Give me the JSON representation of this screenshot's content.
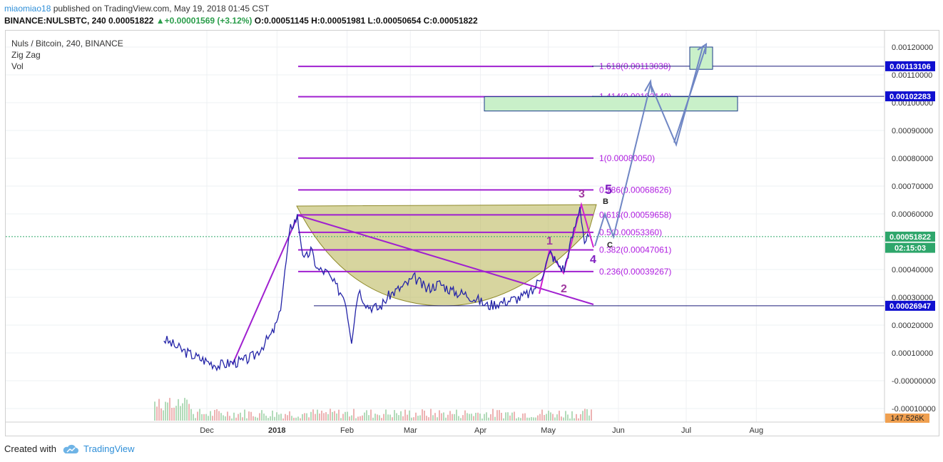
{
  "header": {
    "user": "miaomiao18",
    "published": " published on TradingView.com, May 19, 2018 01:45 CST",
    "symbol_line_prefix": "BINANCE:NULSBTC, 240  0.00051822 ",
    "change": "+0.00001569 (+3.12%)",
    "ohlc": " O:0.00051145 H:0.00051981 L:0.00050654 C:0.00051822"
  },
  "legend": {
    "title": "Nuls / Bitcoin, 240, BINANCE",
    "indicator1": "Zig Zag",
    "indicator2": "Vol"
  },
  "footer": {
    "created_with": "Created with",
    "brand": "TradingView"
  },
  "colors": {
    "price": "#2424a8",
    "fib": "#a020d0",
    "zigzag": "#a020d0",
    "projection": "#6f86c4",
    "cup": "#b6b350",
    "box_fill": "#c9f0c9",
    "label_bg": "#1010d0",
    "last_price_bg": "#2ea66b"
  },
  "chart_data": {
    "type": "line",
    "title": "Nuls / Bitcoin, 240, BINANCE",
    "y_axis_ticks": [
      "0.00120000",
      "0.00110000",
      "0.00100000",
      "0.00090000",
      "0.00080000",
      "0.00070000",
      "0.00060000",
      "0.00040000",
      "0.00030000",
      "0.00020000",
      "0.00010000",
      "-0.00000000",
      "-0.00010000"
    ],
    "x_axis_ticks": [
      "Dec",
      "2018",
      "Feb",
      "Mar",
      "Apr",
      "May",
      "Jun",
      "Jul",
      "Aug"
    ],
    "ylim": [
      -0.00013,
      0.00126
    ],
    "series": [
      {
        "name": "",
        "x": [
          "2017-11-12",
          "2017-11-16",
          "2017-11-20",
          "2017-11-25",
          "2017-12-01",
          "2017-12-06",
          "2017-12-12",
          "2017-12-17",
          "2017-12-22",
          "2017-12-26",
          "2017-12-30",
          "2018-01-02",
          "2018-01-07",
          "2018-01-10",
          "2018-01-13",
          "2018-01-16",
          "2018-01-19",
          "2018-01-23",
          "2018-01-27",
          "2018-01-31",
          "2018-02-03",
          "2018-02-06",
          "2018-02-10",
          "2018-02-15",
          "2018-02-20",
          "2018-02-26",
          "2018-03-03",
          "2018-03-08",
          "2018-03-14",
          "2018-03-20",
          "2018-03-26",
          "2018-03-31",
          "2018-04-04",
          "2018-04-09",
          "2018-04-14",
          "2018-04-19",
          "2018-04-24",
          "2018-04-28",
          "2018-05-02",
          "2018-05-05",
          "2018-05-08",
          "2018-05-11",
          "2018-05-13",
          "2018-05-15",
          "2018-05-17",
          "2018-05-19"
        ],
        "values": [
          0.00015,
          0.00013,
          0.00011,
          9e-05,
          7e-05,
          5.5e-05,
          6.5e-05,
          7e-05,
          9e-05,
          0.00013,
          0.00017,
          0.00023,
          0.00055,
          0.00059,
          0.00043,
          0.00047,
          0.0004,
          0.00039,
          0.00034,
          0.0003,
          0.00015,
          0.00033,
          0.00027,
          0.00026,
          0.00031,
          0.00034,
          0.00037,
          0.00033,
          0.00035,
          0.00032,
          0.00031,
          0.00029,
          0.00027,
          0.00028,
          0.00029,
          0.0003,
          0.00032,
          0.00038,
          0.00046,
          0.00042,
          0.0004,
          0.0005,
          0.00056,
          0.00063,
          0.0005,
          0.000518
        ]
      }
    ],
    "fibonacci": [
      {
        "label": "1.618(0.00113038)",
        "value": 0.00113038
      },
      {
        "label": "1.414(0.00102149)",
        "value": 0.00102149
      },
      {
        "label": "1(0.00080050)",
        "value": 0.0008005
      },
      {
        "label": "0.786(0.00068626)",
        "value": 0.00068626
      },
      {
        "label": "0.618(0.00059658)",
        "value": 0.00059658
      },
      {
        "label": "0.5(0.00053360)",
        "value": 0.0005336
      },
      {
        "label": "0.382(0.00047061)",
        "value": 0.00047061
      },
      {
        "label": "0.236(0.00039267)",
        "value": 0.00039267
      }
    ],
    "price_labels": [
      {
        "text": "0.00113106",
        "value": 0.00113106,
        "kind": "level"
      },
      {
        "text": "0.00102283",
        "value": 0.00102283,
        "kind": "level"
      },
      {
        "text": "0.00051822",
        "value": 0.00051822,
        "kind": "last"
      },
      {
        "text": "02:15:03",
        "value": 0.000478,
        "kind": "timer"
      },
      {
        "text": "0.00026947",
        "value": 0.00026947,
        "kind": "level"
      }
    ],
    "volume_label": "147.526K",
    "wave_labels": [
      "1",
      "2",
      "3",
      "4",
      "5",
      "B",
      "C"
    ],
    "grid": true
  }
}
